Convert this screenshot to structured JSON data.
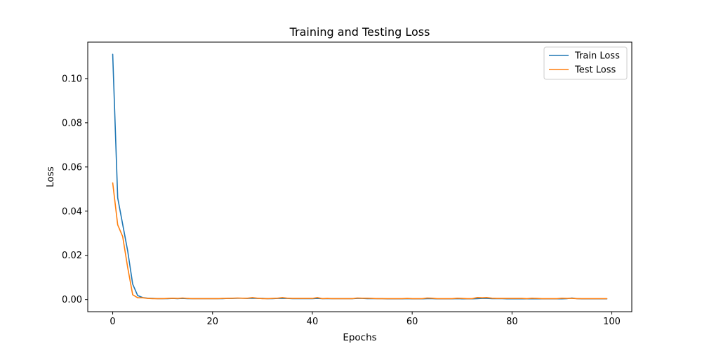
{
  "chart_data": {
    "type": "line",
    "title": "Training and Testing Loss",
    "xlabel": "Epochs",
    "ylabel": "Loss",
    "xlim": [
      -5,
      104
    ],
    "ylim": [
      -0.0055,
      0.1165
    ],
    "x_ticks": [
      0,
      20,
      40,
      60,
      80,
      100
    ],
    "y_ticks": [
      0.0,
      0.02,
      0.04,
      0.06,
      0.08,
      0.1
    ],
    "x_tick_labels": [
      "0",
      "20",
      "40",
      "60",
      "80",
      "100"
    ],
    "y_tick_labels": [
      "0.00",
      "0.02",
      "0.04",
      "0.06",
      "0.08",
      "0.10"
    ],
    "grid": false,
    "legend_position": "top-right",
    "series": [
      {
        "name": "Train Loss",
        "color": "#1f77b4",
        "values": [
          0.111,
          0.046,
          0.034,
          0.022,
          0.007,
          0.0018,
          0.0009,
          0.0006,
          0.0005,
          0.0004,
          0.0004,
          0.0004,
          0.0005,
          0.0004,
          0.0005,
          0.0004,
          0.0004,
          0.0004,
          0.0004,
          0.0004,
          0.0004,
          0.0004,
          0.0004,
          0.0005,
          0.0005,
          0.0006,
          0.0006,
          0.0005,
          0.0006,
          0.0005,
          0.0005,
          0.0004,
          0.0004,
          0.0005,
          0.0005,
          0.0005,
          0.0004,
          0.0004,
          0.0004,
          0.0004,
          0.0004,
          0.0005,
          0.0004,
          0.0004,
          0.0004,
          0.0004,
          0.0004,
          0.0004,
          0.0004,
          0.0005,
          0.0005,
          0.0004,
          0.0004,
          0.0004,
          0.0004,
          0.0003,
          0.0003,
          0.0003,
          0.0003,
          0.0004,
          0.0003,
          0.0003,
          0.0003,
          0.0004,
          0.0004,
          0.0003,
          0.0003,
          0.0003,
          0.0003,
          0.0004,
          0.0003,
          0.0003,
          0.0003,
          0.0004,
          0.0005,
          0.0005,
          0.0004,
          0.0004,
          0.0004,
          0.0003,
          0.0003,
          0.0003,
          0.0003,
          0.0003,
          0.0003,
          0.0003,
          0.0003,
          0.0003,
          0.0003,
          0.0003,
          0.0003,
          0.0004,
          0.0007,
          0.0004,
          0.0003,
          0.0003,
          0.0003,
          0.0003,
          0.0003,
          0.0003
        ]
      },
      {
        "name": "Test Loss",
        "color": "#ff7f0e",
        "values": [
          0.0528,
          0.0338,
          0.0285,
          0.0145,
          0.0022,
          0.0008,
          0.0008,
          0.0005,
          0.0004,
          0.0004,
          0.0004,
          0.0005,
          0.0006,
          0.0005,
          0.0007,
          0.0005,
          0.0004,
          0.0004,
          0.0004,
          0.0004,
          0.0004,
          0.0004,
          0.0005,
          0.0005,
          0.0006,
          0.0007,
          0.0006,
          0.0006,
          0.0009,
          0.0006,
          0.0004,
          0.0004,
          0.0005,
          0.0006,
          0.0009,
          0.0006,
          0.0005,
          0.0005,
          0.0005,
          0.0005,
          0.0005,
          0.0009,
          0.0004,
          0.0005,
          0.0004,
          0.0004,
          0.0004,
          0.0004,
          0.0004,
          0.0007,
          0.0006,
          0.0006,
          0.0005,
          0.0004,
          0.0004,
          0.0004,
          0.0004,
          0.0004,
          0.0004,
          0.0005,
          0.0004,
          0.0004,
          0.0004,
          0.0007,
          0.0006,
          0.0004,
          0.0004,
          0.0004,
          0.0004,
          0.0006,
          0.0005,
          0.0004,
          0.0004,
          0.0009,
          0.0008,
          0.0009,
          0.0006,
          0.0005,
          0.0005,
          0.0005,
          0.0005,
          0.0005,
          0.0005,
          0.0004,
          0.0006,
          0.0005,
          0.0004,
          0.0004,
          0.0004,
          0.0004,
          0.0006,
          0.0005,
          0.0005,
          0.0004,
          0.0004,
          0.0004,
          0.0004,
          0.0004,
          0.0004,
          0.0004
        ]
      }
    ]
  }
}
